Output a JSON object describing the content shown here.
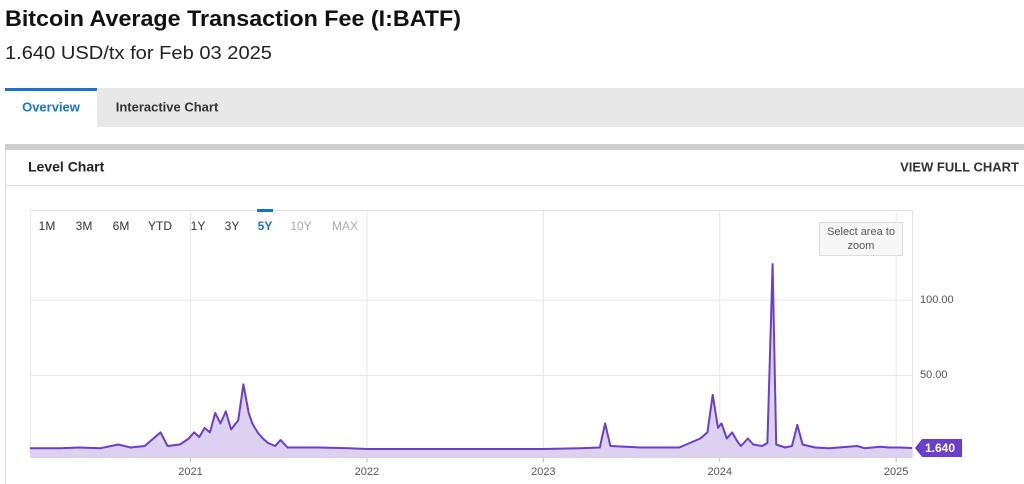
{
  "header": {
    "title": "Bitcoin Average Transaction Fee (I:BATF)",
    "subtitle": "1.640 USD/tx for Feb 03 2025"
  },
  "tabs": {
    "items": [
      "Overview",
      "Interactive Chart"
    ],
    "active": "Overview"
  },
  "panel": {
    "title": "Level Chart",
    "action": "VIEW FULL CHART",
    "range_buttons": [
      "1M",
      "3M",
      "6M",
      "YTD",
      "1Y",
      "3Y",
      "5Y",
      "10Y",
      "MAX"
    ],
    "active_range": "5Y",
    "disabled_ranges": [
      "10Y",
      "MAX"
    ],
    "zoom_hint": "Select area to zoom"
  },
  "chart_data": {
    "type": "area",
    "x": [
      2020.09,
      2020.26,
      2020.37,
      2020.49,
      2020.59,
      2020.66,
      2020.74,
      2020.83,
      2020.87,
      2020.94,
      2020.99,
      2021.02,
      2021.05,
      2021.08,
      2021.11,
      2021.14,
      2021.17,
      2021.2,
      2021.23,
      2021.27,
      2021.3,
      2021.33,
      2021.35,
      2021.38,
      2021.41,
      2021.44,
      2021.48,
      2021.51,
      2021.55,
      2021.73,
      2021.9,
      2022.0,
      2022.19,
      2022.47,
      2022.75,
      2023.0,
      2023.21,
      2023.32,
      2023.35,
      2023.38,
      2023.55,
      2023.77,
      2023.89,
      2023.93,
      2023.96,
      2023.99,
      2024.01,
      2024.04,
      2024.07,
      2024.1,
      2024.12,
      2024.16,
      2024.19,
      2024.24,
      2024.27,
      2024.3,
      2024.32,
      2024.37,
      2024.41,
      2024.44,
      2024.47,
      2024.54,
      2024.62,
      2024.78,
      2024.82,
      2024.91,
      2024.96,
      2025.02,
      2025.09
    ],
    "values": [
      1.5,
      1.5,
      2,
      1.5,
      4,
      2,
      3,
      12,
      3,
      4,
      8,
      12,
      9,
      15,
      12,
      25,
      18,
      26,
      14,
      20,
      44,
      25,
      18,
      12,
      8,
      5,
      3,
      7,
      2,
      2,
      1.5,
      1,
      1,
      1,
      1,
      1,
      1.5,
      2,
      18,
      3,
      2,
      2,
      8,
      12,
      37,
      15,
      18,
      8,
      12,
      6,
      3,
      8,
      4,
      3,
      5,
      124,
      4,
      2,
      3,
      17,
      4,
      2,
      1.5,
      3,
      1.5,
      2.5,
      2,
      2,
      1.64
    ],
    "value_labels": [
      null,
      null,
      null,
      null,
      null,
      null,
      null,
      null,
      null,
      null,
      null,
      null,
      null,
      null,
      null,
      null,
      null,
      null,
      null,
      null,
      null,
      null,
      null,
      null,
      null,
      null,
      null,
      null,
      null,
      null,
      null,
      null,
      null,
      null,
      null,
      null,
      null,
      null,
      null,
      null,
      null,
      null,
      null,
      null,
      null,
      null,
      null,
      null,
      null,
      null,
      null,
      null,
      null,
      null,
      null,
      null,
      null,
      null,
      null,
      null,
      null,
      null,
      null,
      null,
      null,
      null,
      null,
      null,
      "1.640"
    ],
    "color": "#6a3fc9",
    "fill_color": "#dcd1f0",
    "xlim": [
      2020.09,
      2025.09
    ],
    "xticks": [
      2021,
      2022,
      2023,
      2024,
      2025
    ],
    "ylim": [
      -5,
      160
    ],
    "yticks": [
      {
        "value": 50,
        "label": "50.00"
      },
      {
        "value": 100,
        "label": "100.00"
      }
    ],
    "grid": true
  }
}
